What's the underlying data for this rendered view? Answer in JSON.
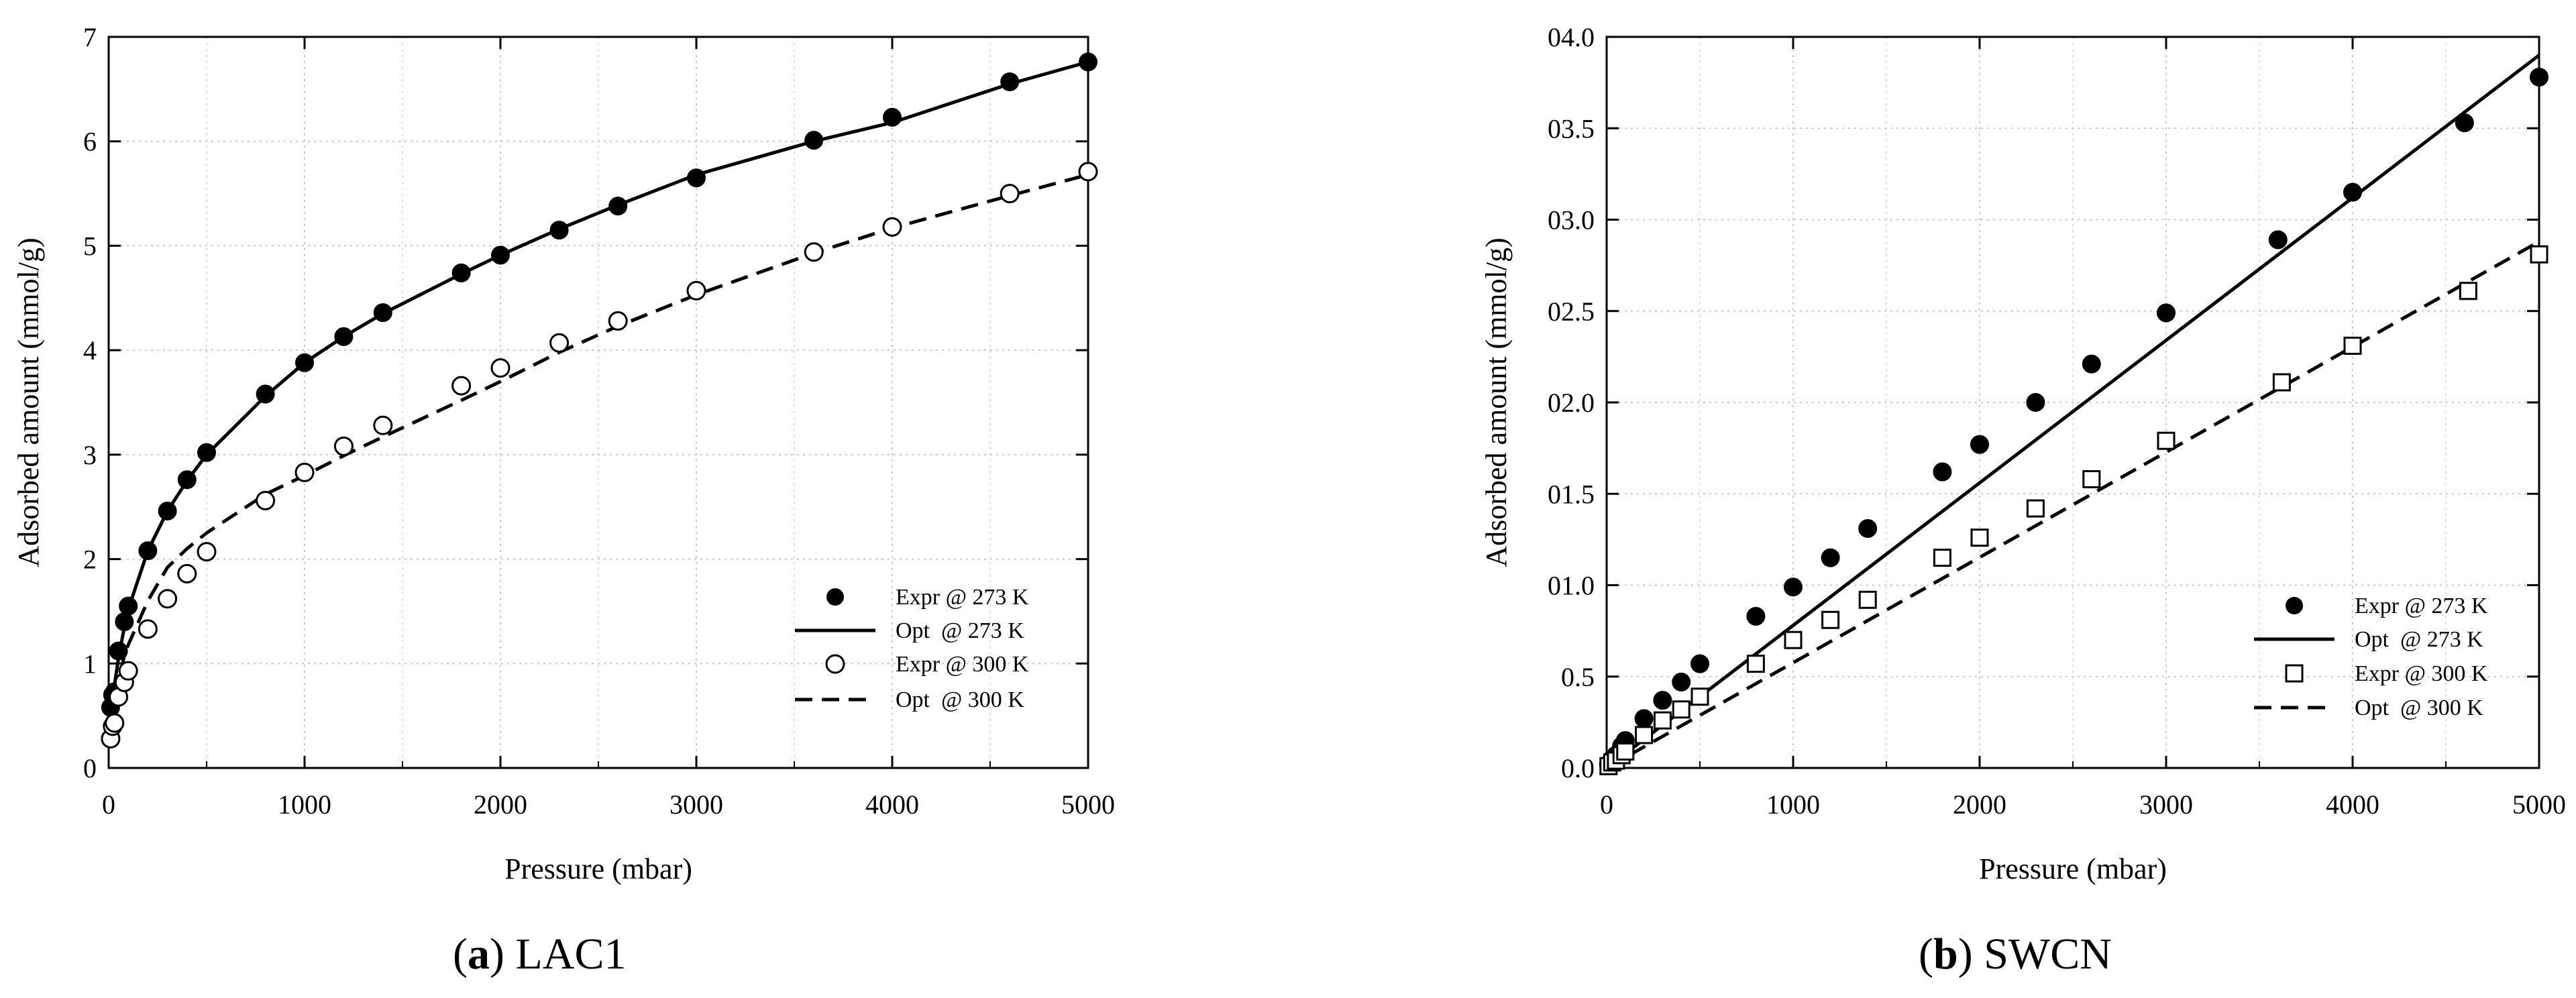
{
  "captions": [
    {
      "letter": "a",
      "name": "LAC1"
    },
    {
      "letter": "b",
      "name": "SWCN"
    }
  ],
  "chart_data": [
    {
      "type": "scatter",
      "title": "",
      "xlabel": "Pressure (mbar)",
      "ylabel": "Adsorbed amount (mmol/g)",
      "xlim": [
        0,
        5000
      ],
      "ylim": [
        0,
        7
      ],
      "xticks": [
        0,
        1000,
        2000,
        3000,
        4000,
        5000
      ],
      "xtick_labels": [
        "0",
        "1000",
        "2000",
        "3000",
        "4000",
        "5000"
      ],
      "yticks": [
        0,
        1,
        2,
        3,
        4,
        5,
        6,
        7
      ],
      "ytick_labels": [
        "0",
        "1",
        "2",
        "3",
        "4",
        "5",
        "6",
        "7"
      ],
      "grid": true,
      "legend_position": "lower-right",
      "series": [
        {
          "name": "Expr @ 273 K",
          "kind": "markers",
          "marker": "filled-circle",
          "x": [
            10,
            20,
            30,
            50,
            80,
            100,
            200,
            300,
            400,
            500,
            800,
            1000,
            1200,
            1400,
            1800,
            2000,
            2300,
            2600,
            3000,
            3600,
            4000,
            4600,
            5000
          ],
          "y": [
            0.58,
            0.7,
            0.73,
            1.12,
            1.4,
            1.55,
            2.08,
            2.46,
            2.76,
            3.02,
            3.58,
            3.88,
            4.13,
            4.36,
            4.74,
            4.91,
            5.15,
            5.38,
            5.65,
            6.01,
            6.23,
            6.57,
            6.76
          ]
        },
        {
          "name": "Opt  @ 273 K",
          "kind": "line",
          "dash": "solid",
          "x": [
            10,
            30,
            50,
            80,
            100,
            200,
            300,
            400,
            500,
            800,
            1000,
            1200,
            1400,
            1800,
            2000,
            2300,
            2600,
            3000,
            3600,
            4000,
            4600,
            5000
          ],
          "y": [
            0.62,
            0.8,
            1.05,
            1.35,
            1.52,
            2.08,
            2.46,
            2.75,
            3.0,
            3.56,
            3.88,
            4.13,
            4.35,
            4.73,
            4.91,
            5.16,
            5.39,
            5.68,
            6.0,
            6.18,
            6.55,
            6.76
          ]
        },
        {
          "name": "Expr @ 300 K",
          "kind": "markers",
          "marker": "open-circle",
          "x": [
            10,
            20,
            30,
            50,
            80,
            100,
            200,
            300,
            400,
            500,
            800,
            1000,
            1200,
            1400,
            1800,
            2000,
            2300,
            2600,
            3000,
            3600,
            4000,
            4600,
            5000
          ],
          "y": [
            0.28,
            0.4,
            0.43,
            0.68,
            0.82,
            0.93,
            1.33,
            1.62,
            1.86,
            2.07,
            2.56,
            2.83,
            3.08,
            3.28,
            3.66,
            3.83,
            4.07,
            4.28,
            4.57,
            4.94,
            5.18,
            5.5,
            5.71
          ]
        },
        {
          "name": "Opt  @ 300 K",
          "kind": "line",
          "dash": "dashed",
          "x": [
            10,
            30,
            50,
            80,
            100,
            200,
            300,
            400,
            500,
            800,
            1000,
            1200,
            1400,
            1800,
            2000,
            2300,
            2600,
            3000,
            3600,
            4000,
            4600,
            5000
          ],
          "y": [
            0.4,
            0.62,
            0.82,
            1.08,
            1.18,
            1.6,
            1.92,
            2.1,
            2.25,
            2.62,
            2.8,
            2.99,
            3.17,
            3.52,
            3.7,
            3.98,
            4.23,
            4.53,
            4.93,
            5.17,
            5.48,
            5.68
          ]
        }
      ]
    },
    {
      "type": "scatter",
      "title": "",
      "xlabel": "Pressure (mbar)",
      "ylabel": "Adsorbed amount (mmol/g)",
      "xlim": [
        0,
        5000
      ],
      "ylim": [
        0,
        4
      ],
      "xticks": [
        0,
        1000,
        2000,
        3000,
        4000,
        5000
      ],
      "xtick_labels": [
        "0",
        "1000",
        "2000",
        "3000",
        "4000",
        "5000"
      ],
      "yticks": [
        0,
        0.5,
        1,
        1.5,
        2,
        2.5,
        3,
        3.5,
        4
      ],
      "ytick_labels": [
        "0.0",
        "0.5",
        "01.0",
        "01.5",
        "02.0",
        "02.5",
        "03.0",
        "03.5",
        "04.0"
      ],
      "grid": true,
      "legend_position": "lower-right",
      "series": [
        {
          "name": "Expr @ 273 K",
          "kind": "markers",
          "marker": "filled-circle",
          "x": [
            10,
            30,
            50,
            80,
            100,
            200,
            300,
            400,
            500,
            800,
            1000,
            1200,
            1400,
            1800,
            2000,
            2300,
            2600,
            3000,
            3600,
            4000,
            4600,
            5000
          ],
          "y": [
            0.02,
            0.05,
            0.07,
            0.12,
            0.15,
            0.27,
            0.37,
            0.47,
            0.57,
            0.83,
            0.99,
            1.15,
            1.31,
            1.62,
            1.77,
            2.0,
            2.21,
            2.49,
            2.89,
            3.15,
            3.53,
            3.78
          ]
        },
        {
          "name": "Opt  @ 273 K",
          "kind": "line",
          "dash": "solid",
          "x": [
            0,
            5000
          ],
          "y": [
            0,
            3.9
          ]
        },
        {
          "name": "Expr @ 300 K",
          "kind": "markers",
          "marker": "open-square",
          "x": [
            10,
            30,
            50,
            80,
            100,
            200,
            300,
            400,
            500,
            800,
            1000,
            1200,
            1400,
            1800,
            2000,
            2300,
            2600,
            3000,
            3620,
            4000,
            4620,
            5000
          ],
          "y": [
            0.01,
            0.03,
            0.04,
            0.07,
            0.09,
            0.18,
            0.26,
            0.32,
            0.39,
            0.57,
            0.7,
            0.81,
            0.92,
            1.15,
            1.26,
            1.42,
            1.58,
            1.79,
            2.11,
            2.31,
            2.61,
            2.81
          ]
        },
        {
          "name": "Opt  @ 300 K",
          "kind": "line",
          "dash": "dashed",
          "x": [
            0,
            5000
          ],
          "y": [
            0,
            2.88
          ]
        }
      ]
    }
  ]
}
